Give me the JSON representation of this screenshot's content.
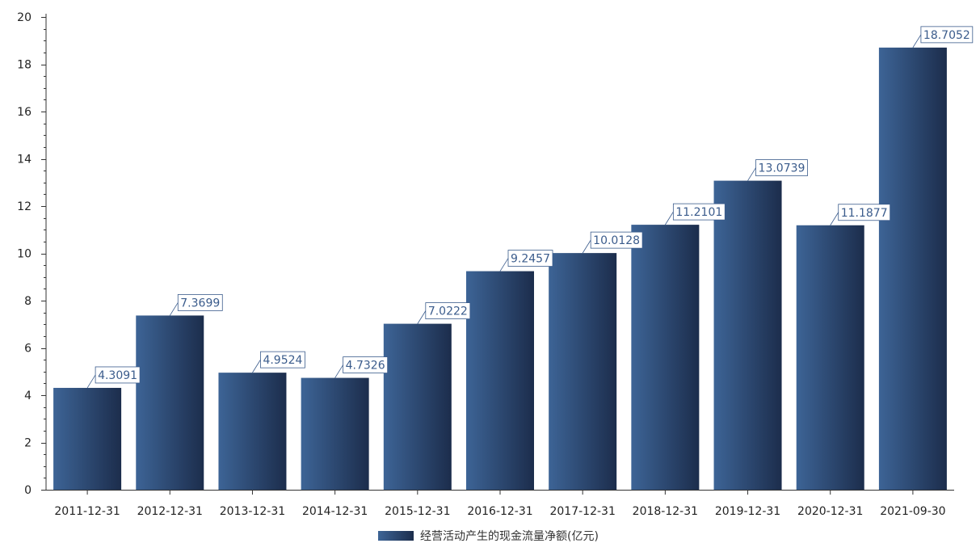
{
  "chart_data": {
    "type": "bar",
    "categories": [
      "2011-12-31",
      "2012-12-31",
      "2013-12-31",
      "2014-12-31",
      "2015-12-31",
      "2016-12-31",
      "2017-12-31",
      "2018-12-31",
      "2019-12-31",
      "2020-12-31",
      "2021-09-30"
    ],
    "series": [
      {
        "name": "经营活动产生的现金流量净额(亿元)",
        "values": [
          4.3091,
          7.3699,
          4.9524,
          4.7326,
          7.0222,
          9.2457,
          10.0128,
          11.2101,
          13.0739,
          11.1877,
          18.7052
        ],
        "labels": [
          "4.3091",
          "7.3699",
          "4.9524",
          "4.7326",
          "7.0222",
          "9.2457",
          "10.0128",
          "11.2101",
          "13.0739",
          "11.1877",
          "18.7052"
        ]
      }
    ],
    "title": "",
    "xlabel": "",
    "ylabel": "",
    "ylim": [
      0,
      20
    ],
    "yticks": [
      "0",
      "2",
      "4",
      "6",
      "8",
      "10",
      "12",
      "14",
      "16",
      "18",
      "20"
    ],
    "grid": false,
    "legend": "bottom-center",
    "colors": {
      "bar_light": "#3d6496",
      "bar_dark": "#1c2d4c",
      "label_text": "#3b5c8c",
      "label_border": "#3b5c8c",
      "axis": "#333333"
    }
  }
}
